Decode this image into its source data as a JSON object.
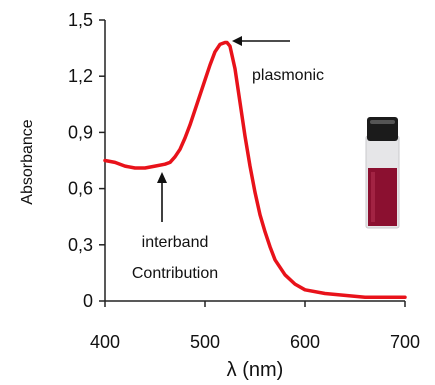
{
  "chart_data": {
    "type": "line",
    "xlabel": "λ (nm)",
    "ylabel": "Absorbance",
    "xlim": [
      400,
      700
    ],
    "ylim": [
      0,
      1.5
    ],
    "x_ticks": [
      400,
      500,
      600,
      700
    ],
    "x_tick_labels": [
      "400",
      "500",
      "600",
      "700"
    ],
    "y_ticks": [
      0,
      0.3,
      0.6,
      0.9,
      1.2,
      1.5
    ],
    "y_tick_labels": [
      "0",
      "0,3",
      "0,6",
      "0,9",
      "1,2",
      "1,5"
    ],
    "grid": false,
    "series": [
      {
        "color": "#e8121a",
        "x": [
          400,
          410,
          420,
          430,
          440,
          450,
          460,
          465,
          470,
          475,
          480,
          485,
          490,
          495,
          500,
          505,
          510,
          515,
          520,
          522,
          525,
          530,
          535,
          540,
          545,
          550,
          555,
          560,
          565,
          570,
          580,
          590,
          600,
          620,
          640,
          660,
          680,
          700
        ],
        "y": [
          0.75,
          0.74,
          0.72,
          0.71,
          0.71,
          0.72,
          0.73,
          0.74,
          0.77,
          0.81,
          0.87,
          0.94,
          1.02,
          1.1,
          1.18,
          1.26,
          1.33,
          1.37,
          1.38,
          1.38,
          1.36,
          1.24,
          1.06,
          0.88,
          0.72,
          0.58,
          0.46,
          0.37,
          0.29,
          0.22,
          0.14,
          0.09,
          0.06,
          0.04,
          0.03,
          0.02,
          0.02,
          0.02
        ]
      }
    ],
    "annotations": [
      {
        "text": "plasmonic",
        "x": 522,
        "y": 1.38,
        "arrow": "left"
      },
      {
        "text_lines": [
          "interband",
          "Contribution"
        ],
        "x": 460,
        "y": 0.73,
        "arrow": "up"
      }
    ]
  },
  "inset": {
    "cap_color": "#1b1b1b",
    "liquid_color": "#8b1030",
    "glass_color": "#e6e6e8"
  }
}
